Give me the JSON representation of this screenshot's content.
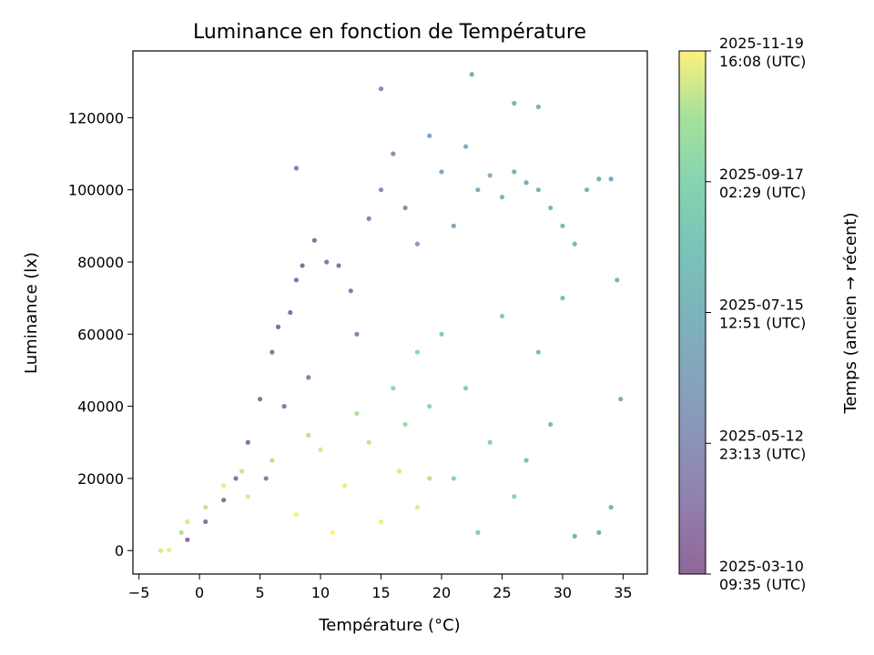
{
  "chart_data": {
    "type": "scatter",
    "title": "Luminance en fonction de Température",
    "xlabel": "Température (°C)",
    "ylabel": "Luminance (lx)",
    "xlim": [
      -5.5,
      37
    ],
    "ylim": [
      -6500,
      138500
    ],
    "x_ticks": [
      -5,
      0,
      5,
      10,
      15,
      20,
      25,
      30,
      35
    ],
    "y_ticks": [
      0,
      20000,
      40000,
      60000,
      80000,
      100000,
      120000
    ],
    "grid": false,
    "colormap": "viridis",
    "point_alpha": 0.6,
    "colorbar": {
      "label": "Temps (ancien → récent)",
      "ticks": [
        [
          "2025-03-10",
          "09:35 (UTC)"
        ],
        [
          "2025-05-12",
          "23:13 (UTC)"
        ],
        [
          "2025-07-15",
          "12:51 (UTC)"
        ],
        [
          "2025-09-17",
          "02:29 (UTC)"
        ],
        [
          "2025-11-19",
          "16:08 (UTC)"
        ]
      ],
      "tick_positions": [
        0,
        0.25,
        0.5,
        0.75,
        1
      ]
    },
    "series": [
      {
        "description": "time-colored scatter, sampled from the visible point cloud (t = 0 oldest … 1 most recent)",
        "points": [
          [
            -3.2,
            0,
            0.95
          ],
          [
            -2.5,
            200,
            0.98
          ],
          [
            -1.5,
            5000,
            0.9
          ],
          [
            -1.0,
            8000,
            0.95
          ],
          [
            0.5,
            12000,
            0.92
          ],
          [
            2.0,
            18000,
            0.97
          ],
          [
            3.5,
            22000,
            0.93
          ],
          [
            4.0,
            15000,
            0.96
          ],
          [
            6.0,
            25000,
            0.9
          ],
          [
            8.0,
            10000,
            0.99
          ],
          [
            10.0,
            28000,
            0.95
          ],
          [
            12.0,
            18000,
            0.97
          ],
          [
            14.0,
            30000,
            0.92
          ],
          [
            15.0,
            8000,
            0.98
          ],
          [
            16.5,
            22000,
            0.94
          ],
          [
            18.0,
            12000,
            0.96
          ],
          [
            19.0,
            20000,
            0.9
          ],
          [
            11.0,
            5000,
            1.0
          ],
          [
            13.0,
            38000,
            0.88
          ],
          [
            9.0,
            32000,
            0.9
          ],
          [
            -1.0,
            3000,
            0.05
          ],
          [
            0.5,
            8000,
            0.08
          ],
          [
            2.0,
            14000,
            0.04
          ],
          [
            3.0,
            20000,
            0.06
          ],
          [
            4.0,
            30000,
            0.03
          ],
          [
            5.0,
            42000,
            0.05
          ],
          [
            6.0,
            55000,
            0.07
          ],
          [
            6.5,
            62000,
            0.02
          ],
          [
            7.5,
            66000,
            0.04
          ],
          [
            8.0,
            75000,
            0.06
          ],
          [
            8.5,
            79000,
            0.03
          ],
          [
            9.5,
            86000,
            0.05
          ],
          [
            10.5,
            80000,
            0.08
          ],
          [
            11.5,
            79000,
            0.04
          ],
          [
            12.5,
            72000,
            0.1
          ],
          [
            13.0,
            60000,
            0.12
          ],
          [
            14.0,
            92000,
            0.15
          ],
          [
            7.0,
            40000,
            0.09
          ],
          [
            5.5,
            20000,
            0.1
          ],
          [
            9.0,
            48000,
            0.12
          ],
          [
            15.0,
            100000,
            0.2
          ],
          [
            16.0,
            110000,
            0.22
          ],
          [
            17.0,
            95000,
            0.25
          ],
          [
            18.0,
            85000,
            0.3
          ],
          [
            19.0,
            115000,
            0.35
          ],
          [
            20.0,
            105000,
            0.38
          ],
          [
            21.0,
            90000,
            0.4
          ],
          [
            22.0,
            112000,
            0.42
          ],
          [
            23.0,
            100000,
            0.45
          ],
          [
            24.0,
            104000,
            0.48
          ],
          [
            25.0,
            98000,
            0.5
          ],
          [
            26.0,
            105000,
            0.45
          ],
          [
            27.0,
            102000,
            0.42
          ],
          [
            28.0,
            100000,
            0.5
          ],
          [
            29.0,
            95000,
            0.55
          ],
          [
            30.0,
            90000,
            0.55
          ],
          [
            31.0,
            85000,
            0.52
          ],
          [
            32.0,
            100000,
            0.48
          ],
          [
            33.0,
            103000,
            0.45
          ],
          [
            34.0,
            103000,
            0.4
          ],
          [
            34.5,
            75000,
            0.5
          ],
          [
            34.8,
            42000,
            0.45
          ],
          [
            34.0,
            12000,
            0.48
          ],
          [
            33.0,
            5000,
            0.5
          ],
          [
            31.0,
            4000,
            0.52
          ],
          [
            20.0,
            60000,
            0.7
          ],
          [
            22.0,
            45000,
            0.72
          ],
          [
            24.0,
            30000,
            0.75
          ],
          [
            26.0,
            15000,
            0.78
          ],
          [
            25.0,
            65000,
            0.7
          ],
          [
            27.0,
            25000,
            0.6
          ],
          [
            28.0,
            55000,
            0.62
          ],
          [
            29.0,
            35000,
            0.58
          ],
          [
            30.0,
            70000,
            0.6
          ],
          [
            23.0,
            5000,
            0.72
          ],
          [
            16.0,
            45000,
            0.8
          ],
          [
            17.0,
            35000,
            0.82
          ],
          [
            18.0,
            55000,
            0.78
          ],
          [
            19.0,
            40000,
            0.8
          ],
          [
            21.0,
            20000,
            0.76
          ],
          [
            22.5,
            132000,
            0.45
          ],
          [
            15.0,
            128000,
            0.2
          ],
          [
            8.0,
            106000,
            0.1
          ],
          [
            26.0,
            124000,
            0.5
          ],
          [
            28.0,
            123000,
            0.45
          ]
        ]
      }
    ]
  }
}
